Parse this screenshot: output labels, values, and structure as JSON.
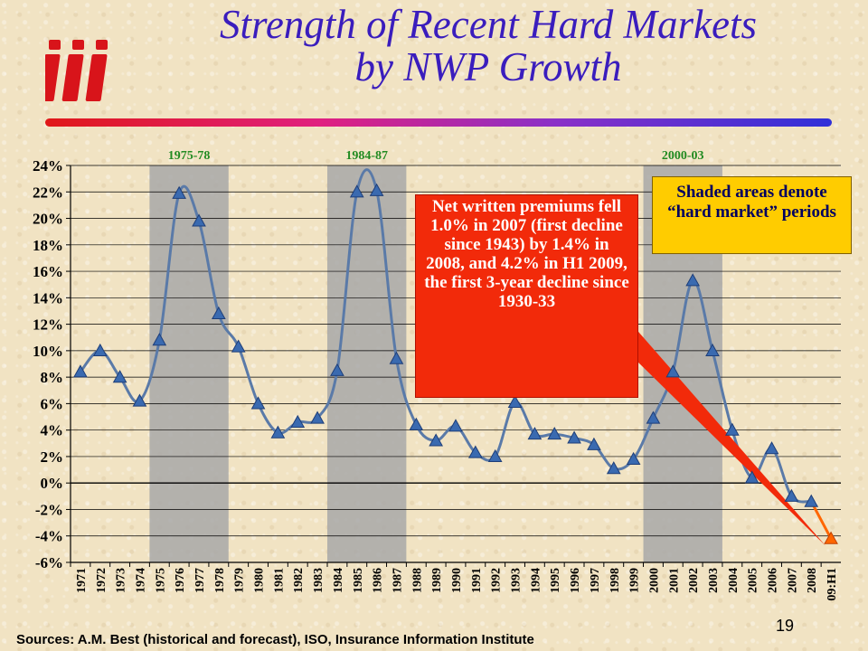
{
  "slide": {
    "title_line1": "Strength of Recent Hard Markets",
    "title_line2": "by NWP Growth",
    "logo_text": "iii",
    "footer": "Sources:  A.M. Best (historical and forecast), ISO, Insurance Information Institute",
    "page_number": "19",
    "callout": "Net written premiums fell 1.0% in 2007 (first decline since 1943) by 1.4% in 2008, and 4.2% in H1 2009, the first 3-year decline since 1930-33",
    "legend_note": "Shaded areas denote “hard market” periods",
    "colors": {
      "title": "#3a1dbd",
      "line": "#5a7aa8",
      "marker": "#3a6ab0",
      "forecast": "#ff6600",
      "shade": "#a8a8a8",
      "callout": "#f22a0a",
      "legend_box": "#ffcc00"
    }
  },
  "chart_data": {
    "type": "line",
    "categories": [
      "1971",
      "1972",
      "1973",
      "1974",
      "1975",
      "1976",
      "1977",
      "1978",
      "1979",
      "1980",
      "1981",
      "1982",
      "1983",
      "1984",
      "1985",
      "1986",
      "1987",
      "1988",
      "1989",
      "1990",
      "1991",
      "1992",
      "1993",
      "1994",
      "1995",
      "1996",
      "1997",
      "1998",
      "1999",
      "2000",
      "2001",
      "2002",
      "2003",
      "2004",
      "2005",
      "2006",
      "2007",
      "2008",
      "09:H1"
    ],
    "values": [
      8.4,
      10.0,
      8.0,
      6.2,
      10.8,
      21.9,
      19.8,
      12.8,
      10.3,
      6.0,
      3.8,
      4.6,
      4.9,
      8.5,
      22.0,
      22.1,
      9.4,
      4.4,
      3.2,
      4.3,
      2.3,
      2.0,
      6.1,
      3.7,
      3.7,
      3.4,
      2.9,
      1.1,
      1.8,
      4.9,
      8.4,
      15.3,
      10.0,
      4.0,
      0.4,
      2.6,
      -1.0,
      -1.4,
      -4.2
    ],
    "ylim": [
      -6,
      24
    ],
    "y_ticks": [
      "24%",
      "22%",
      "20%",
      "18%",
      "16%",
      "14%",
      "12%",
      "10%",
      "8%",
      "6%",
      "4%",
      "2%",
      "0%",
      "-2%",
      "-4%",
      "-6%"
    ],
    "shaded_periods": [
      {
        "label": "1975-78",
        "start": "1975",
        "end": "1978"
      },
      {
        "label": "1984-87",
        "start": "1984",
        "end": "1987"
      },
      {
        "label": "2000-03",
        "start": "2000",
        "end": "2003"
      }
    ],
    "grid": true
  }
}
